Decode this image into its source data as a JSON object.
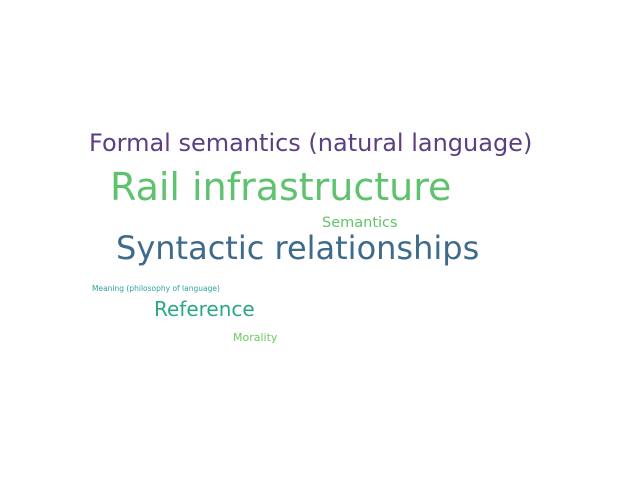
{
  "words": [
    {
      "text": "Formal semantics (natural language)",
      "color": "#5c3f82"
    },
    {
      "text": "Rail infrastructure",
      "color": "#5ec26e"
    },
    {
      "text": "Semantics",
      "color": "#62c46a"
    },
    {
      "text": "Syntactic relationships",
      "color": "#3e6b8c"
    },
    {
      "text": "Meaning (philosophy of language)",
      "color": "#2fa39a"
    },
    {
      "text": "Reference",
      "color": "#2aa886"
    },
    {
      "text": "Morality",
      "color": "#6ccb5f"
    }
  ]
}
